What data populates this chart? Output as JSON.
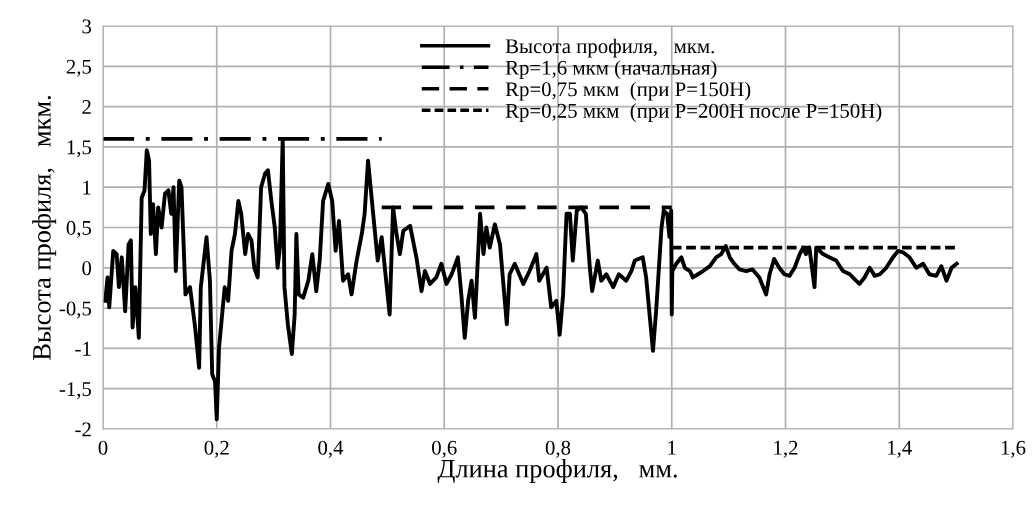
{
  "chart_data": {
    "type": "line",
    "xlabel": "Длина профиля,   мм.",
    "ylabel": "Высота профиля,   мкм.",
    "xlim": [
      0,
      1.6
    ],
    "ylim": [
      -2,
      3
    ],
    "xticks": [
      0,
      {
        "value": 0.2,
        "label": "0,2"
      },
      {
        "value": 0.4,
        "label": "0,4"
      },
      {
        "value": 0.6,
        "label": "0,6"
      },
      {
        "value": 0.8,
        "label": "0,8"
      },
      1,
      {
        "value": 1.2,
        "label": "1,2"
      },
      {
        "value": 1.4,
        "label": "1,4"
      },
      {
        "value": 1.6,
        "label": "1,6"
      }
    ],
    "yticks": [
      -2,
      {
        "value": -1.5,
        "label": "-1,5"
      },
      -1,
      {
        "value": -0.5,
        "label": "-0,5"
      },
      0,
      {
        "value": 0.5,
        "label": "0,5"
      },
      1,
      {
        "value": 1.5,
        "label": "1,5"
      },
      2,
      {
        "value": 2.5,
        "label": "2,5"
      },
      3
    ],
    "grid": true,
    "legend": "top right",
    "marker": "none",
    "series": [
      {
        "name": "Высота профиля,   мкм.",
        "color": "#000000",
        "line_style": "solid",
        "x": [
          0.004,
          0.008,
          0.011,
          0.018,
          0.024,
          0.028,
          0.033,
          0.039,
          0.045,
          0.049,
          0.052,
          0.057,
          0.063,
          0.068,
          0.073,
          0.077,
          0.081,
          0.084,
          0.088,
          0.093,
          0.097,
          0.103,
          0.109,
          0.115,
          0.12,
          0.124,
          0.128,
          0.134,
          0.138,
          0.145,
          0.153,
          0.162,
          0.169,
          0.172,
          0.182,
          0.188,
          0.192,
          0.197,
          0.2,
          0.204,
          0.214,
          0.22,
          0.226,
          0.232,
          0.238,
          0.243,
          0.25,
          0.255,
          0.261,
          0.266,
          0.272,
          0.278,
          0.285,
          0.29,
          0.296,
          0.302,
          0.307,
          0.311,
          0.316,
          0.319,
          0.325,
          0.332,
          0.337,
          0.34,
          0.344,
          0.352,
          0.361,
          0.368,
          0.375,
          0.381,
          0.387,
          0.396,
          0.403,
          0.409,
          0.415,
          0.422,
          0.431,
          0.437,
          0.446,
          0.455,
          0.46,
          0.466,
          0.475,
          0.483,
          0.49,
          0.499,
          0.504,
          0.51,
          0.516,
          0.522,
          0.528,
          0.54,
          0.551,
          0.56,
          0.566,
          0.575,
          0.586,
          0.595,
          0.604,
          0.613,
          0.624,
          0.63,
          0.636,
          0.642,
          0.648,
          0.654,
          0.663,
          0.669,
          0.674,
          0.68,
          0.689,
          0.698,
          0.71,
          0.715,
          0.724,
          0.739,
          0.75,
          0.762,
          0.767,
          0.78,
          0.788,
          0.797,
          0.803,
          0.809,
          0.815,
          0.821,
          0.826,
          0.833,
          0.841,
          0.849,
          0.856,
          0.86,
          0.87,
          0.876,
          0.885,
          0.897,
          0.907,
          0.92,
          0.929,
          0.935,
          0.949,
          0.955,
          0.961,
          0.967,
          0.973,
          0.982,
          0.986,
          0.992,
          0.996,
          0.999,
          1.0,
          1.001,
          1.008,
          1.017,
          1.023,
          1.032,
          1.037,
          1.046,
          1.055,
          1.067,
          1.078,
          1.087,
          1.095,
          1.102,
          1.11,
          1.119,
          1.131,
          1.142,
          1.154,
          1.166,
          1.172,
          1.18,
          1.189,
          1.198,
          1.207,
          1.216,
          1.225,
          1.231,
          1.236,
          1.242,
          1.251,
          1.254,
          1.266,
          1.277,
          1.289,
          1.301,
          1.313,
          1.324,
          1.33,
          1.339,
          1.348,
          1.357,
          1.366,
          1.377,
          1.389,
          1.398,
          1.407,
          1.418,
          1.43,
          1.442,
          1.453,
          1.465,
          1.474,
          1.483,
          1.492,
          1.501
        ],
        "values": [
          -0.41,
          -0.12,
          -0.49,
          0.21,
          0.17,
          -0.24,
          0.13,
          -0.54,
          0.29,
          0.34,
          -0.74,
          -0.24,
          -0.87,
          0.87,
          0.96,
          1.46,
          1.33,
          0.42,
          0.79,
          0.17,
          0.75,
          0.5,
          0.92,
          0.96,
          0.67,
          1.0,
          -0.04,
          1.08,
          1.0,
          -0.33,
          -0.24,
          -0.74,
          -1.24,
          -0.24,
          0.38,
          -0.16,
          -1.32,
          -1.41,
          -1.88,
          -0.99,
          -0.24,
          -0.41,
          0.21,
          0.42,
          0.83,
          0.67,
          0.17,
          0.42,
          0.34,
          0.0,
          -0.12,
          1.0,
          1.17,
          1.21,
          0.83,
          0.5,
          0.0,
          0.25,
          1.6,
          -0.24,
          -0.7,
          -1.07,
          -0.58,
          0.42,
          -0.33,
          -0.37,
          -0.16,
          0.17,
          -0.29,
          0.09,
          0.83,
          1.04,
          0.83,
          0.21,
          0.58,
          -0.16,
          -0.08,
          -0.33,
          0.09,
          0.42,
          0.67,
          1.33,
          0.67,
          0.09,
          0.38,
          -0.24,
          -0.58,
          0.75,
          0.42,
          0.17,
          0.46,
          0.52,
          0.13,
          -0.29,
          -0.04,
          -0.2,
          -0.12,
          0.05,
          -0.2,
          -0.08,
          0.13,
          -0.33,
          -0.87,
          -0.41,
          -0.16,
          -0.62,
          0.67,
          0.17,
          0.5,
          0.25,
          0.54,
          0.29,
          -0.7,
          -0.08,
          0.05,
          -0.2,
          -0.04,
          0.17,
          -0.16,
          0.0,
          -0.49,
          -0.41,
          -0.83,
          -0.33,
          0.67,
          0.67,
          0.09,
          0.71,
          0.75,
          0.67,
          0.0,
          -0.29,
          0.09,
          -0.16,
          -0.08,
          -0.24,
          -0.08,
          -0.16,
          -0.04,
          0.09,
          0.13,
          -0.12,
          -0.58,
          -1.03,
          -0.49,
          0.5,
          0.71,
          0.67,
          0.38,
          0.71,
          -0.58,
          -0.04,
          0.05,
          0.13,
          0.0,
          -0.04,
          -0.12,
          -0.08,
          -0.04,
          0.02,
          0.13,
          0.17,
          0.27,
          0.13,
          0.05,
          -0.02,
          -0.04,
          -0.02,
          -0.12,
          -0.33,
          -0.08,
          0.11,
          0.0,
          -0.08,
          -0.1,
          0.0,
          0.17,
          0.25,
          0.17,
          0.25,
          -0.24,
          0.25,
          0.17,
          0.13,
          0.09,
          -0.04,
          -0.08,
          -0.16,
          -0.2,
          -0.12,
          0.0,
          -0.1,
          -0.08,
          0.0,
          0.13,
          0.21,
          0.19,
          0.13,
          0.0,
          0.05,
          -0.08,
          -0.1,
          0.02,
          -0.16,
          0.0,
          0.05
        ]
      },
      {
        "name": "Rp=1,6 мкм (начальная)",
        "color": "#000000",
        "line_style": "dashdot",
        "x": [
          0,
          0.49
        ],
        "values": [
          1.6,
          1.6
        ]
      },
      {
        "name": "Rp=0,75 мкм  (при P=150Н)",
        "color": "#000000",
        "line_style": "dashed",
        "x": [
          0.49,
          1.0
        ],
        "values": [
          0.75,
          0.75
        ]
      },
      {
        "name": "Rp=0,25 мкм  (при P=200Н после P=150Н)",
        "color": "#000000",
        "line_style": "dotted",
        "x": [
          1.0,
          1.5
        ],
        "values": [
          0.25,
          0.25
        ]
      }
    ]
  }
}
